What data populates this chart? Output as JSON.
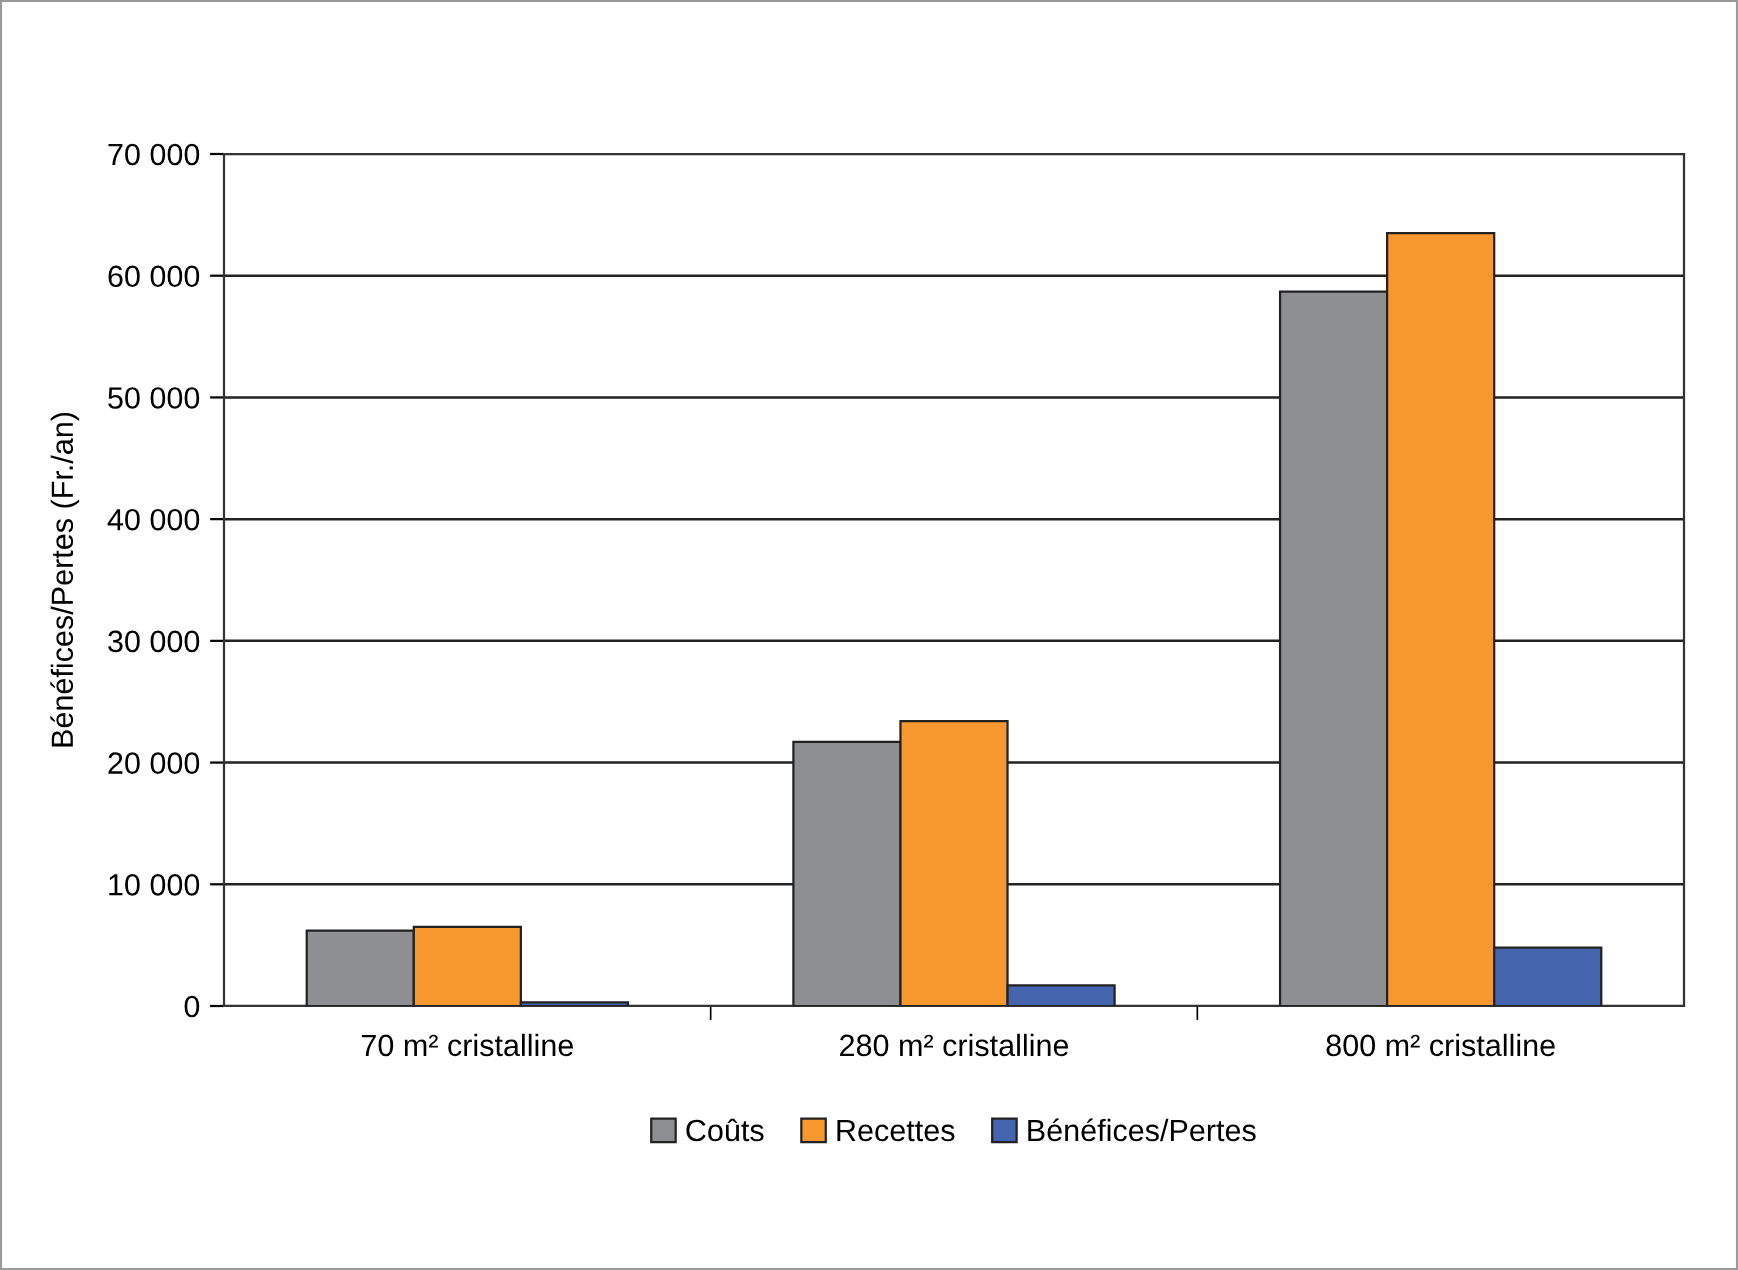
{
  "chart_data": {
    "type": "bar",
    "ylabel": "Bénéfices/Pertes (Fr./an)",
    "categories": [
      "70 m² cristalline",
      "280 m² cristalline",
      "800 m² cristalline"
    ],
    "series": [
      {
        "name": "Coûts",
        "color": "#8e8f93",
        "values": [
          6200,
          21700,
          58700
        ]
      },
      {
        "name": "Recettes",
        "color": "#f7982f",
        "values": [
          6500,
          23400,
          63500
        ]
      },
      {
        "name": "Bénéfices/Pertes",
        "color": "#4464ad",
        "values": [
          300,
          1700,
          4800
        ]
      }
    ],
    "ylim": [
      0,
      70000
    ],
    "yticks": [
      {
        "value": 0,
        "label": "0"
      },
      {
        "value": 10000,
        "label": "10 000"
      },
      {
        "value": 20000,
        "label": "20 000"
      },
      {
        "value": 30000,
        "label": "30 000"
      },
      {
        "value": 40000,
        "label": "40 000"
      },
      {
        "value": 50000,
        "label": "50 000"
      },
      {
        "value": 60000,
        "label": "60 000"
      },
      {
        "value": 70000,
        "label": "70 000"
      }
    ],
    "grid": "y",
    "legend": "bottom"
  }
}
